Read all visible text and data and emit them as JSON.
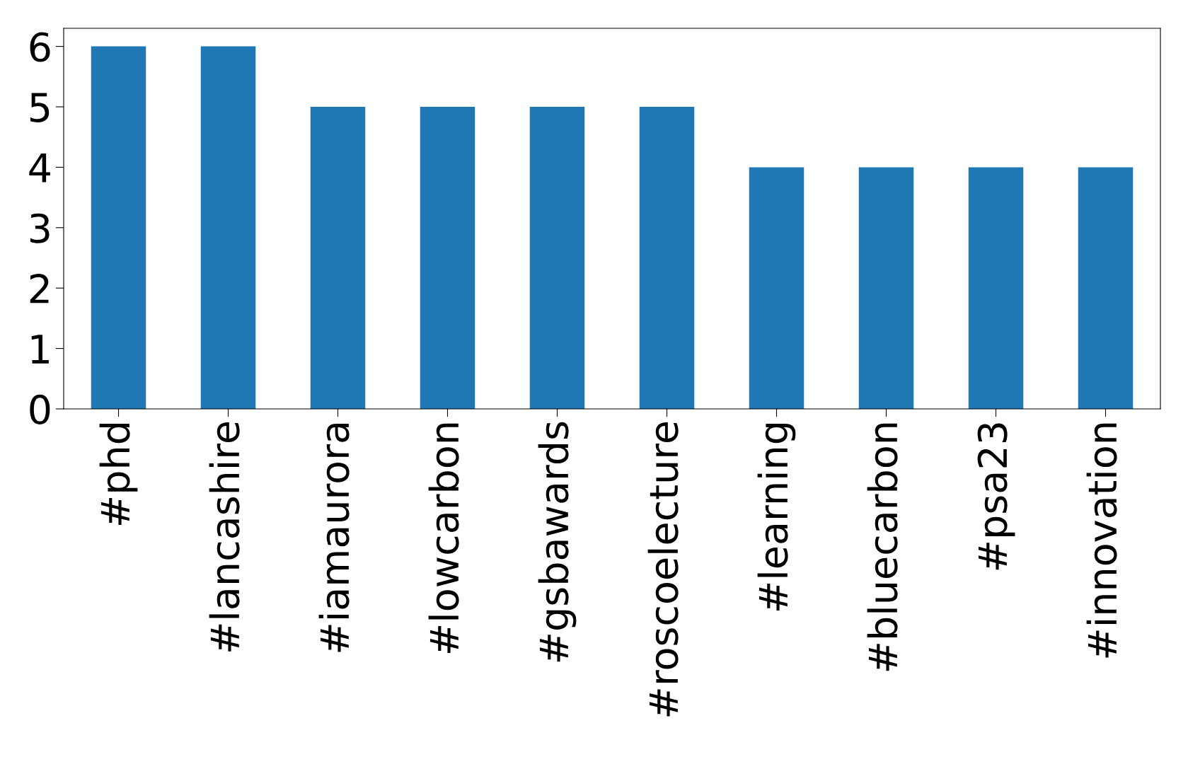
{
  "chart_data": {
    "type": "bar",
    "categories": [
      "#phd",
      "#lancashire",
      "#iamaurora",
      "#lowcarbon",
      "#gsbawards",
      "#roscoelecture",
      "#learning",
      "#bluecarbon",
      "#psa23",
      "#innovation"
    ],
    "values": [
      6,
      6,
      5,
      5,
      5,
      5,
      4,
      4,
      4,
      4
    ],
    "color": "#1f77b4",
    "ylim": [
      0,
      6.3
    ],
    "yticks": [
      0,
      1,
      2,
      3,
      4,
      5,
      6
    ],
    "grid": false,
    "legend": false
  }
}
